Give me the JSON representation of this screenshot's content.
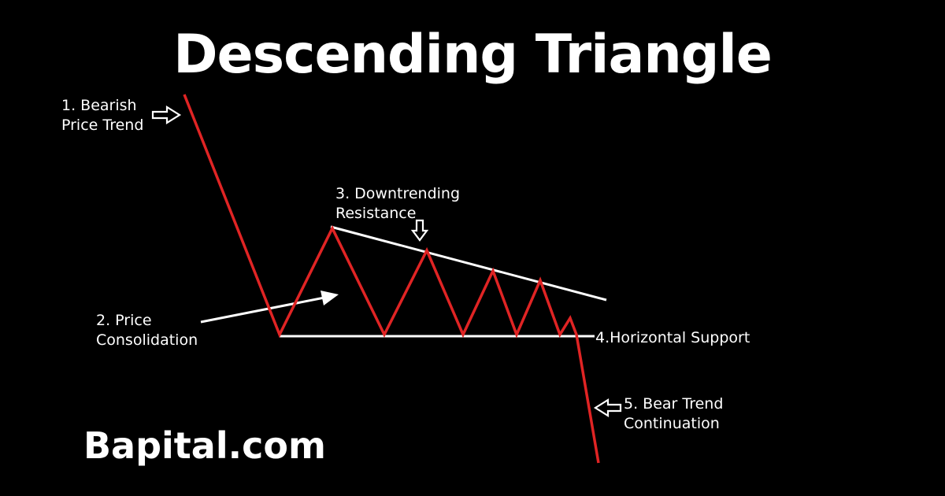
{
  "title": "Descending Triangle",
  "labels": {
    "bearish_trend": [
      "1. Bearish",
      "Price Trend"
    ],
    "consolidation": [
      "2. Price",
      "Consolidation"
    ],
    "resistance": [
      "3. Downtrending",
      "Resistance"
    ],
    "support": "4.Horizontal Support",
    "continuation": [
      "5. Bear Trend",
      "Continuation"
    ]
  },
  "brand": "Bapital.com",
  "colors": {
    "background": "#000000",
    "price_line": "#e02424",
    "trend_lines": "#ffffff",
    "text": "#ffffff"
  }
}
